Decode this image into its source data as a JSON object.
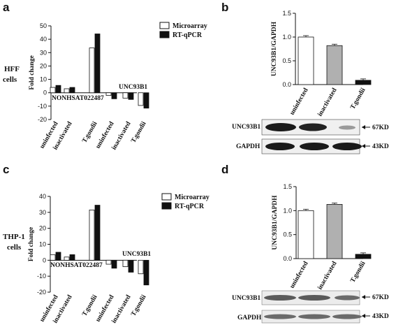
{
  "panels": {
    "a": "a",
    "b": "b",
    "c": "c",
    "d": "d"
  },
  "row_labels": {
    "top": [
      "HFF",
      "cells"
    ],
    "bottom": [
      "THP-1",
      "cells"
    ]
  },
  "colors": {
    "microarray": "#ffffff",
    "rtqpcr": "#111111",
    "uninfected": "#ffffff",
    "inactivated": "#b0b0b0",
    "tgondii": "#111111"
  },
  "chart_data": [
    {
      "id": "a",
      "type": "bar",
      "ylabel": "Fold change",
      "ylim": [
        -20,
        50
      ],
      "yticks": [
        -20,
        -10,
        0,
        10,
        20,
        30,
        40,
        50
      ],
      "categories": [
        "uninfected",
        "inactivated",
        "T.gondii",
        "uninfected",
        "inactivated",
        "T.gondii"
      ],
      "groups": [
        "NONHSAT022487",
        "UNC93B1"
      ],
      "series": [
        {
          "name": "Microarray",
          "values": [
            4,
            3,
            33.5,
            -2,
            -4,
            -9.5
          ]
        },
        {
          "name": "RT-qPCR",
          "values": [
            5.5,
            4,
            44,
            -4.5,
            -5,
            -11.5
          ]
        }
      ],
      "legend_position": "top-right"
    },
    {
      "id": "b",
      "type": "bar",
      "ylabel": "UNC93B1/GAPDH",
      "ylim": [
        0,
        1.5
      ],
      "yticks": [
        "0.0",
        "0.5",
        "1.0",
        "1.5"
      ],
      "categories": [
        "uninfected",
        "inactivated",
        "T.gondii"
      ],
      "values": [
        1.0,
        0.82,
        0.09
      ]
    },
    {
      "id": "c",
      "type": "bar",
      "ylabel": "Fold change",
      "ylim": [
        -20,
        40
      ],
      "yticks": [
        -20,
        -10,
        0,
        10,
        20,
        30,
        40
      ],
      "categories": [
        "uninfected",
        "inactivated",
        "T.gondii",
        "uninfected",
        "inactivated",
        "T.gondii"
      ],
      "groups": [
        "NONHSAT022487",
        "UNC93B1"
      ],
      "series": [
        {
          "name": "Microarray",
          "values": [
            3.5,
            2,
            31.5,
            -2.5,
            -4,
            -8.5
          ]
        },
        {
          "name": "RT-qPCR",
          "values": [
            5,
            3.5,
            34.5,
            -5,
            -7.5,
            -15.5
          ]
        }
      ],
      "legend_position": "top-right"
    },
    {
      "id": "d",
      "type": "bar",
      "ylabel": "UNC93B1/GAPDH",
      "ylim": [
        0,
        1.5
      ],
      "yticks": [
        "0.0",
        "0.5",
        "1.0",
        "1.5"
      ],
      "categories": [
        "uninfected",
        "inactivated",
        "T.gondii"
      ],
      "values": [
        1.0,
        1.13,
        0.09
      ]
    }
  ],
  "blots": {
    "top": [
      {
        "label": "UNC93B1",
        "size": "67KD"
      },
      {
        "label": "GAPDH",
        "size": "43KD"
      }
    ],
    "bottom": [
      {
        "label": "UNC93B1",
        "size": "67KD"
      },
      {
        "label": "GAPDH",
        "size": "43KD"
      }
    ]
  }
}
